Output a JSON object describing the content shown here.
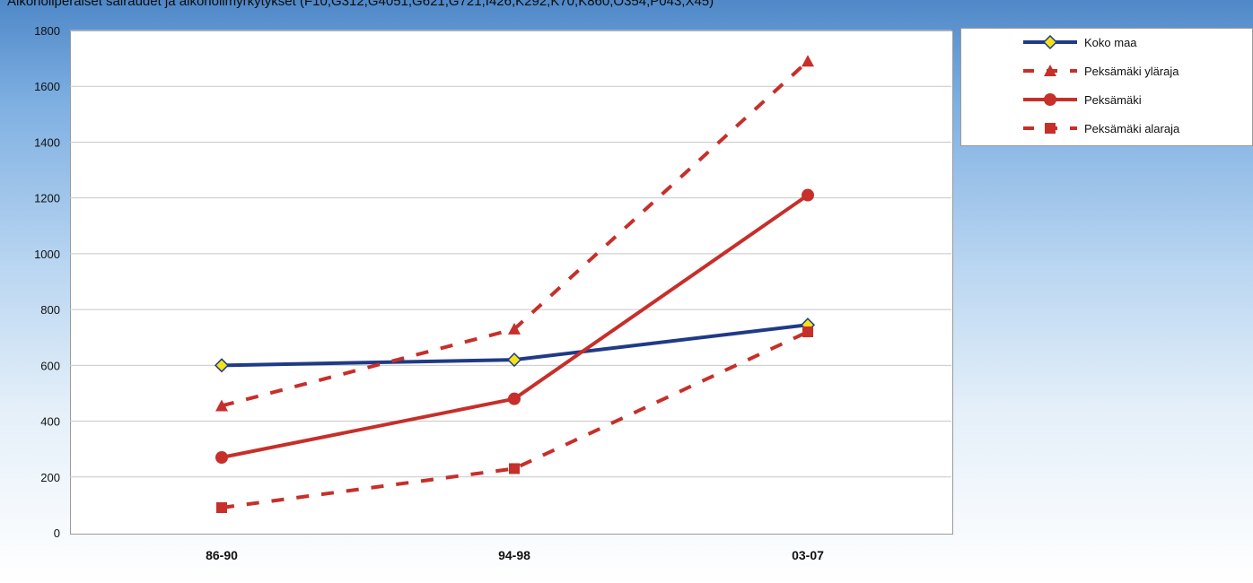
{
  "chart_data": {
    "type": "line",
    "title": "Alkoholiperäiset sairaudet ja alkoholimyrkytykset (F10,G312,G4051,G621,G721,I426,K292,K70,K860,O354,P043,X45)",
    "categories": [
      "86-90",
      "94-98",
      "03-07"
    ],
    "ylim": [
      0,
      1800
    ],
    "yticks": [
      0,
      200,
      400,
      600,
      800,
      1000,
      1200,
      1400,
      1600,
      1800
    ],
    "grid": true,
    "legend_position": "top-right",
    "series": [
      {
        "name": "Koko maa",
        "values": [
          600,
          620,
          745
        ],
        "color": "#1f3a86",
        "dash": false,
        "marker": "diamond"
      },
      {
        "name": "Peksämäki yläraja",
        "values": [
          455,
          730,
          1690
        ],
        "color": "#c62f2a",
        "dash": true,
        "marker": "triangle"
      },
      {
        "name": "Peksämäki",
        "values": [
          270,
          480,
          1210
        ],
        "color": "#c62f2a",
        "dash": false,
        "marker": "circle"
      },
      {
        "name": "Peksämäki alaraja",
        "values": [
          90,
          230,
          720
        ],
        "color": "#c62f2a",
        "dash": true,
        "marker": "square"
      }
    ]
  }
}
